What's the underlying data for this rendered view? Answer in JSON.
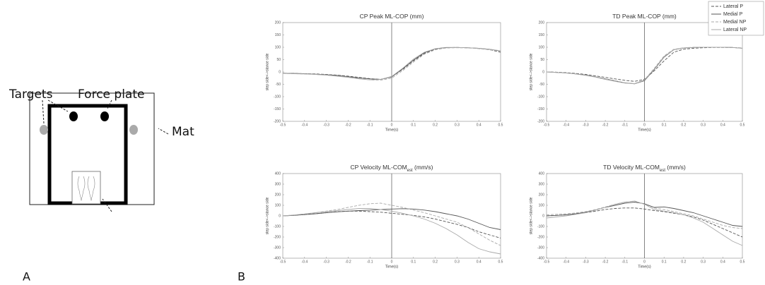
{
  "diagram": {
    "targets": "Targets",
    "force_plate": "Force plate",
    "mat": "Mat"
  },
  "panel_labels": [
    "A",
    "B"
  ],
  "chart_data": [
    {
      "type": "line",
      "title": [
        "CP Peak ML-COP  (mm)"
      ],
      "xlabel": "Time(s)",
      "ylabel": "step side<->stance side",
      "x": [
        -0.5,
        -0.45,
        -0.4,
        -0.35,
        -0.3,
        -0.25,
        -0.2,
        -0.15,
        -0.1,
        -0.05,
        0,
        0.05,
        0.1,
        0.15,
        0.2,
        0.25,
        0.3,
        0.35,
        0.4,
        0.45,
        0.5
      ],
      "xlim": [
        -0.5,
        0.5
      ],
      "xticks": [
        -0.5,
        -0.4,
        -0.3,
        -0.2,
        -0.1,
        0,
        0.1,
        0.2,
        0.3,
        0.4,
        0.5
      ],
      "ylim": [
        -200,
        200
      ],
      "yticks": [
        -200,
        -150,
        -100,
        -50,
        0,
        50,
        100,
        150,
        200
      ],
      "series": [
        {
          "color": "#555555",
          "dash": true,
          "values": [
            -5,
            -6,
            -7,
            -8,
            -10,
            -13,
            -17,
            -22,
            -27,
            -30,
            -20,
            10,
            45,
            75,
            92,
            98,
            99,
            98,
            95,
            90,
            80
          ]
        },
        {
          "color": "#555555",
          "dash": false,
          "values": [
            -5,
            -6,
            -7,
            -9,
            -11,
            -14,
            -19,
            -24,
            -28,
            -30,
            -20,
            12,
            48,
            78,
            94,
            99,
            99,
            98,
            96,
            92,
            85
          ]
        },
        {
          "color": "#aaaaaa",
          "dash": true,
          "values": [
            -6,
            -7,
            -8,
            -10,
            -12,
            -16,
            -21,
            -27,
            -32,
            -33,
            -25,
            5,
            40,
            72,
            90,
            97,
            98,
            97,
            95,
            90,
            84
          ]
        },
        {
          "color": "#aaaaaa",
          "dash": false,
          "values": [
            -6,
            -7,
            -8,
            -10,
            -13,
            -17,
            -22,
            -28,
            -32,
            -30,
            -18,
            15,
            52,
            80,
            94,
            98,
            99,
            98,
            96,
            92,
            86
          ]
        }
      ]
    },
    {
      "type": "line",
      "title": [
        "TD Peak ML-COP  (mm)"
      ],
      "xlabel": "Time(s)",
      "ylabel": "step side<->stance side",
      "legend": "upper right",
      "x": [
        -0.5,
        -0.45,
        -0.4,
        -0.35,
        -0.3,
        -0.25,
        -0.2,
        -0.15,
        -0.1,
        -0.05,
        0,
        0.05,
        0.1,
        0.15,
        0.2,
        0.25,
        0.3,
        0.35,
        0.4,
        0.45,
        0.5
      ],
      "xlim": [
        -0.5,
        0.5
      ],
      "xticks": [
        -0.5,
        -0.4,
        -0.3,
        -0.2,
        -0.1,
        0,
        0.1,
        0.2,
        0.3,
        0.4,
        0.5
      ],
      "ylim": [
        -200,
        200
      ],
      "yticks": [
        -200,
        -150,
        -100,
        -50,
        0,
        50,
        100,
        150,
        200
      ],
      "series": [
        {
          "name": "Lateral P",
          "color": "#555555",
          "dash": true,
          "values": [
            0,
            -1,
            -3,
            -6,
            -10,
            -16,
            -22,
            -28,
            -34,
            -38,
            -30,
            5,
            45,
            80,
            92,
            96,
            98,
            99,
            99,
            99,
            97
          ]
        },
        {
          "name": "Medial P",
          "color": "#555555",
          "dash": false,
          "values": [
            0,
            -2,
            -4,
            -8,
            -13,
            -20,
            -28,
            -36,
            -44,
            -48,
            -35,
            10,
            60,
            90,
            97,
            99,
            100,
            100,
            100,
            99,
            96
          ]
        },
        {
          "name": "Medial NP",
          "color": "#aaaaaa",
          "dash": true,
          "values": [
            0,
            -2,
            -4,
            -8,
            -13,
            -20,
            -28,
            -36,
            -44,
            -47,
            -32,
            15,
            65,
            92,
            98,
            100,
            100,
            100,
            100,
            99,
            96
          ]
        },
        {
          "name": "Lateral NP",
          "color": "#aaaaaa",
          "dash": false,
          "values": [
            0,
            -2,
            -4,
            -8,
            -14,
            -21,
            -30,
            -38,
            -45,
            -48,
            -33,
            12,
            62,
            90,
            97,
            99,
            100,
            100,
            100,
            99,
            96
          ]
        }
      ]
    },
    {
      "type": "line",
      "title": [
        "CP Velocity ML-COM",
        "est",
        "  (mm/s)"
      ],
      "xlabel": "Time(s)",
      "ylabel": "step side<->stance side",
      "x": [
        -0.5,
        -0.45,
        -0.4,
        -0.35,
        -0.3,
        -0.25,
        -0.2,
        -0.15,
        -0.1,
        -0.05,
        0,
        0.05,
        0.1,
        0.15,
        0.2,
        0.25,
        0.3,
        0.35,
        0.4,
        0.45,
        0.5
      ],
      "xlim": [
        -0.5,
        0.5
      ],
      "xticks": [
        -0.5,
        -0.4,
        -0.3,
        -0.2,
        -0.1,
        0,
        0.1,
        0.2,
        0.3,
        0.4,
        0.5
      ],
      "ylim": [
        -400,
        400
      ],
      "yticks": [
        -400,
        -300,
        -200,
        -100,
        0,
        100,
        200,
        300,
        400
      ],
      "series": [
        {
          "color": "#555555",
          "dash": true,
          "values": [
            0,
            5,
            12,
            20,
            30,
            40,
            45,
            45,
            40,
            35,
            25,
            15,
            5,
            -10,
            -30,
            -55,
            -80,
            -110,
            -150,
            -180,
            -210
          ]
        },
        {
          "color": "#555555",
          "dash": false,
          "values": [
            0,
            5,
            12,
            20,
            30,
            38,
            45,
            50,
            55,
            60,
            65,
            68,
            65,
            55,
            40,
            20,
            0,
            -30,
            -70,
            -110,
            -130
          ]
        },
        {
          "color": "#aaaaaa",
          "dash": true,
          "values": [
            0,
            8,
            18,
            30,
            45,
            60,
            80,
            100,
            115,
            120,
            100,
            80,
            55,
            30,
            0,
            -30,
            -60,
            -110,
            -170,
            -230,
            -280
          ]
        },
        {
          "color": "#aaaaaa",
          "dash": false,
          "values": [
            0,
            8,
            18,
            30,
            40,
            50,
            60,
            70,
            70,
            60,
            45,
            25,
            0,
            -30,
            -70,
            -120,
            -180,
            -250,
            -310,
            -340,
            -360
          ]
        }
      ]
    },
    {
      "type": "line",
      "title": [
        "TD Velocity ML-COM",
        "est",
        "  (mm/s)"
      ],
      "xlabel": "Time(s)",
      "ylabel": "step side<->stance side",
      "x": [
        -0.5,
        -0.45,
        -0.4,
        -0.35,
        -0.3,
        -0.25,
        -0.2,
        -0.15,
        -0.1,
        -0.05,
        0,
        0.05,
        0.1,
        0.15,
        0.2,
        0.25,
        0.3,
        0.35,
        0.4,
        0.45,
        0.5
      ],
      "xlim": [
        -0.5,
        0.5
      ],
      "xticks": [
        -0.5,
        -0.4,
        -0.3,
        -0.2,
        -0.1,
        0,
        0.1,
        0.2,
        0.3,
        0.4,
        0.5
      ],
      "ylim": [
        -400,
        400
      ],
      "yticks": [
        -400,
        -300,
        -200,
        -100,
        0,
        100,
        200,
        300,
        400
      ],
      "series": [
        {
          "color": "#555555",
          "dash": true,
          "values": [
            0,
            5,
            10,
            20,
            30,
            45,
            60,
            70,
            75,
            75,
            65,
            50,
            40,
            25,
            10,
            -10,
            -40,
            -80,
            -120,
            -160,
            -200
          ]
        },
        {
          "color": "#555555",
          "dash": false,
          "values": [
            0,
            5,
            10,
            20,
            35,
            55,
            80,
            100,
            120,
            130,
            115,
            80,
            85,
            70,
            50,
            30,
            0,
            -30,
            -60,
            -90,
            -100
          ]
        },
        {
          "color": "#aaaaaa",
          "dash": true,
          "values": [
            10,
            15,
            20,
            28,
            40,
            60,
            85,
            110,
            130,
            140,
            110,
            75,
            60,
            40,
            20,
            0,
            -30,
            -60,
            -90,
            -110,
            -120
          ]
        },
        {
          "color": "#aaaaaa",
          "dash": false,
          "values": [
            -20,
            -10,
            0,
            15,
            30,
            55,
            80,
            110,
            130,
            140,
            110,
            60,
            45,
            30,
            10,
            -20,
            -60,
            -120,
            -180,
            -240,
            -280
          ]
        }
      ]
    }
  ]
}
